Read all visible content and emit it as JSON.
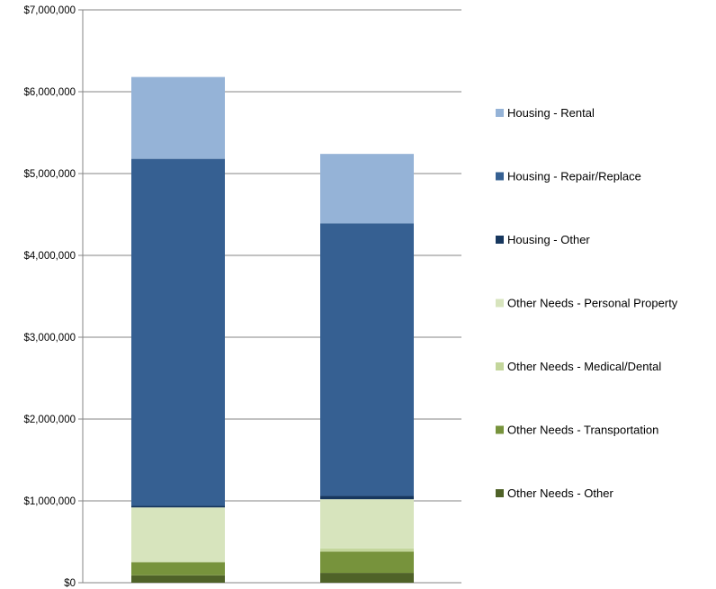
{
  "chart_data": {
    "type": "bar",
    "stacked": true,
    "title": "",
    "xlabel": "",
    "ylabel": "",
    "categories": [
      "",
      ""
    ],
    "ylim": [
      0,
      7000000
    ],
    "yticks": [
      0,
      1000000,
      2000000,
      3000000,
      4000000,
      5000000,
      6000000,
      7000000
    ],
    "ytick_labels": [
      "$0",
      "$1,000,000",
      "$2,000,000",
      "$3,000,000",
      "$4,000,000",
      "$5,000,000",
      "$6,000,000",
      "$7,000,000"
    ],
    "grid": true,
    "legend_position": "right",
    "series": [
      {
        "name": "Other Needs -  Other",
        "color": "#4f6228",
        "values": [
          90000,
          120000
        ]
      },
      {
        "name": "Other Needs -  Transportation",
        "color": "#77933c",
        "values": [
          160000,
          260000
        ]
      },
      {
        "name": "Other Needs -  Medical/Dental",
        "color": "#c3d69b",
        "values": [
          10000,
          40000
        ]
      },
      {
        "name": "Other Needs -  Personal Property",
        "color": "#d7e4bd",
        "values": [
          660000,
          600000
        ]
      },
      {
        "name": "Housing - Other",
        "color": "#17375e",
        "values": [
          20000,
          40000
        ]
      },
      {
        "name": "Housing - Repair/Replace",
        "color": "#366092",
        "values": [
          4240000,
          3330000
        ]
      },
      {
        "name": "Housing - Rental",
        "color": "#95b3d7",
        "values": [
          1000000,
          850000
        ]
      }
    ],
    "legend_order": [
      "Housing - Rental",
      "Housing - Repair/Replace",
      "Housing - Other",
      "Other Needs -  Personal Property",
      "Other Needs -  Medical/Dental",
      "Other Needs -  Transportation",
      "Other Needs -  Other"
    ]
  }
}
